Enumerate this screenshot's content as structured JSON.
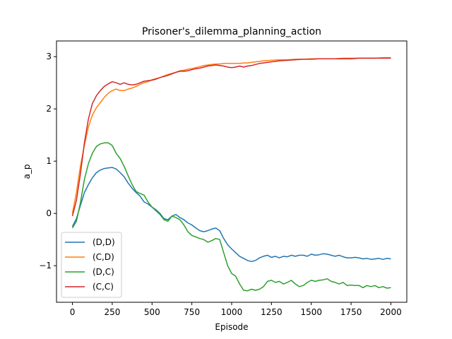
{
  "chart_data": {
    "type": "line",
    "title": "Prisoner's_dilemma_planning_action",
    "xlabel": "Episode",
    "ylabel": "a_p",
    "xlim": [
      -100,
      2100
    ],
    "ylim": [
      -1.7,
      3.3
    ],
    "xticks": [
      0,
      250,
      500,
      750,
      1000,
      1250,
      1500,
      1750,
      2000
    ],
    "yticks": [
      -1,
      0,
      1,
      2,
      3
    ],
    "xtick_labels": [
      "0",
      "250",
      "500",
      "750",
      "1000",
      "1250",
      "1500",
      "1750",
      "2000"
    ],
    "ytick_labels": [
      "−1",
      "0",
      "1",
      "2",
      "3"
    ],
    "legend_position": "lower-left",
    "grid": false,
    "series": [
      {
        "name": "(D,D)",
        "color": "#1f77b4",
        "points": [
          [
            0,
            -0.25
          ],
          [
            25,
            -0.1
          ],
          [
            50,
            0.15
          ],
          [
            75,
            0.4
          ],
          [
            100,
            0.55
          ],
          [
            125,
            0.68
          ],
          [
            150,
            0.78
          ],
          [
            175,
            0.83
          ],
          [
            200,
            0.86
          ],
          [
            225,
            0.87
          ],
          [
            250,
            0.88
          ],
          [
            275,
            0.85
          ],
          [
            300,
            0.78
          ],
          [
            325,
            0.7
          ],
          [
            350,
            0.58
          ],
          [
            375,
            0.48
          ],
          [
            400,
            0.4
          ],
          [
            425,
            0.33
          ],
          [
            450,
            0.22
          ],
          [
            475,
            0.18
          ],
          [
            500,
            0.12
          ],
          [
            525,
            0.07
          ],
          [
            550,
            0.0
          ],
          [
            575,
            -0.1
          ],
          [
            600,
            -0.12
          ],
          [
            625,
            -0.05
          ],
          [
            650,
            -0.02
          ],
          [
            675,
            -0.08
          ],
          [
            700,
            -0.12
          ],
          [
            725,
            -0.18
          ],
          [
            750,
            -0.22
          ],
          [
            775,
            -0.28
          ],
          [
            800,
            -0.33
          ],
          [
            825,
            -0.35
          ],
          [
            850,
            -0.33
          ],
          [
            875,
            -0.3
          ],
          [
            900,
            -0.28
          ],
          [
            925,
            -0.33
          ],
          [
            950,
            -0.48
          ],
          [
            975,
            -0.6
          ],
          [
            1000,
            -0.68
          ],
          [
            1025,
            -0.75
          ],
          [
            1050,
            -0.82
          ],
          [
            1075,
            -0.86
          ],
          [
            1100,
            -0.9
          ],
          [
            1125,
            -0.92
          ],
          [
            1150,
            -0.9
          ],
          [
            1175,
            -0.85
          ],
          [
            1200,
            -0.82
          ],
          [
            1225,
            -0.8
          ],
          [
            1250,
            -0.84
          ],
          [
            1275,
            -0.82
          ],
          [
            1300,
            -0.85
          ],
          [
            1325,
            -0.82
          ],
          [
            1350,
            -0.83
          ],
          [
            1375,
            -0.8
          ],
          [
            1400,
            -0.82
          ],
          [
            1425,
            -0.8
          ],
          [
            1450,
            -0.8
          ],
          [
            1475,
            -0.82
          ],
          [
            1500,
            -0.78
          ],
          [
            1525,
            -0.8
          ],
          [
            1550,
            -0.79
          ],
          [
            1575,
            -0.77
          ],
          [
            1600,
            -0.78
          ],
          [
            1625,
            -0.8
          ],
          [
            1650,
            -0.82
          ],
          [
            1675,
            -0.8
          ],
          [
            1700,
            -0.83
          ],
          [
            1725,
            -0.85
          ],
          [
            1750,
            -0.85
          ],
          [
            1775,
            -0.84
          ],
          [
            1800,
            -0.85
          ],
          [
            1825,
            -0.87
          ],
          [
            1850,
            -0.86
          ],
          [
            1875,
            -0.88
          ],
          [
            1900,
            -0.87
          ],
          [
            1925,
            -0.86
          ],
          [
            1950,
            -0.88
          ],
          [
            1975,
            -0.86
          ],
          [
            2000,
            -0.87
          ]
        ]
      },
      {
        "name": "(C,D)",
        "color": "#ff7f0e",
        "points": [
          [
            0,
            0.0
          ],
          [
            25,
            0.4
          ],
          [
            50,
            0.9
          ],
          [
            75,
            1.3
          ],
          [
            100,
            1.65
          ],
          [
            125,
            1.88
          ],
          [
            150,
            2.02
          ],
          [
            175,
            2.12
          ],
          [
            200,
            2.22
          ],
          [
            225,
            2.3
          ],
          [
            250,
            2.35
          ],
          [
            275,
            2.38
          ],
          [
            300,
            2.35
          ],
          [
            325,
            2.35
          ],
          [
            350,
            2.38
          ],
          [
            375,
            2.4
          ],
          [
            400,
            2.43
          ],
          [
            425,
            2.47
          ],
          [
            450,
            2.5
          ],
          [
            475,
            2.52
          ],
          [
            500,
            2.56
          ],
          [
            525,
            2.58
          ],
          [
            550,
            2.6
          ],
          [
            575,
            2.63
          ],
          [
            600,
            2.66
          ],
          [
            625,
            2.68
          ],
          [
            650,
            2.7
          ],
          [
            675,
            2.73
          ],
          [
            700,
            2.74
          ],
          [
            725,
            2.76
          ],
          [
            750,
            2.77
          ],
          [
            775,
            2.79
          ],
          [
            800,
            2.81
          ],
          [
            825,
            2.83
          ],
          [
            850,
            2.84
          ],
          [
            875,
            2.85
          ],
          [
            900,
            2.86
          ],
          [
            925,
            2.86
          ],
          [
            950,
            2.87
          ],
          [
            975,
            2.87
          ],
          [
            1000,
            2.87
          ],
          [
            1025,
            2.87
          ],
          [
            1050,
            2.87
          ],
          [
            1075,
            2.88
          ],
          [
            1100,
            2.88
          ],
          [
            1125,
            2.89
          ],
          [
            1150,
            2.9
          ],
          [
            1175,
            2.91
          ],
          [
            1200,
            2.92
          ],
          [
            1250,
            2.93
          ],
          [
            1300,
            2.94
          ],
          [
            1350,
            2.94
          ],
          [
            1400,
            2.95
          ],
          [
            1450,
            2.95
          ],
          [
            1500,
            2.96
          ],
          [
            1550,
            2.96
          ],
          [
            1600,
            2.96
          ],
          [
            1650,
            2.96
          ],
          [
            1700,
            2.97
          ],
          [
            1750,
            2.97
          ],
          [
            1800,
            2.97
          ],
          [
            1850,
            2.97
          ],
          [
            1900,
            2.97
          ],
          [
            1950,
            2.98
          ],
          [
            2000,
            2.98
          ]
        ]
      },
      {
        "name": "(D,C)",
        "color": "#2ca02c",
        "points": [
          [
            0,
            -0.28
          ],
          [
            25,
            -0.15
          ],
          [
            50,
            0.2
          ],
          [
            75,
            0.65
          ],
          [
            100,
            0.95
          ],
          [
            125,
            1.15
          ],
          [
            150,
            1.28
          ],
          [
            175,
            1.33
          ],
          [
            200,
            1.35
          ],
          [
            225,
            1.35
          ],
          [
            250,
            1.3
          ],
          [
            275,
            1.15
          ],
          [
            300,
            1.05
          ],
          [
            325,
            0.9
          ],
          [
            350,
            0.72
          ],
          [
            375,
            0.55
          ],
          [
            400,
            0.42
          ],
          [
            425,
            0.38
          ],
          [
            450,
            0.35
          ],
          [
            475,
            0.22
          ],
          [
            500,
            0.12
          ],
          [
            525,
            0.05
          ],
          [
            550,
            -0.02
          ],
          [
            575,
            -0.12
          ],
          [
            600,
            -0.15
          ],
          [
            625,
            -0.05
          ],
          [
            650,
            -0.08
          ],
          [
            675,
            -0.12
          ],
          [
            700,
            -0.22
          ],
          [
            725,
            -0.35
          ],
          [
            750,
            -0.42
          ],
          [
            775,
            -0.45
          ],
          [
            800,
            -0.48
          ],
          [
            825,
            -0.5
          ],
          [
            850,
            -0.55
          ],
          [
            875,
            -0.52
          ],
          [
            900,
            -0.48
          ],
          [
            925,
            -0.5
          ],
          [
            950,
            -0.75
          ],
          [
            975,
            -1.0
          ],
          [
            1000,
            -1.15
          ],
          [
            1025,
            -1.2
          ],
          [
            1050,
            -1.35
          ],
          [
            1075,
            -1.47
          ],
          [
            1100,
            -1.48
          ],
          [
            1125,
            -1.45
          ],
          [
            1150,
            -1.47
          ],
          [
            1175,
            -1.45
          ],
          [
            1200,
            -1.4
          ],
          [
            1225,
            -1.3
          ],
          [
            1250,
            -1.28
          ],
          [
            1275,
            -1.32
          ],
          [
            1300,
            -1.3
          ],
          [
            1325,
            -1.35
          ],
          [
            1350,
            -1.32
          ],
          [
            1375,
            -1.28
          ],
          [
            1400,
            -1.35
          ],
          [
            1425,
            -1.4
          ],
          [
            1450,
            -1.38
          ],
          [
            1475,
            -1.32
          ],
          [
            1500,
            -1.28
          ],
          [
            1525,
            -1.3
          ],
          [
            1550,
            -1.28
          ],
          [
            1575,
            -1.27
          ],
          [
            1600,
            -1.25
          ],
          [
            1625,
            -1.3
          ],
          [
            1650,
            -1.32
          ],
          [
            1675,
            -1.35
          ],
          [
            1700,
            -1.32
          ],
          [
            1725,
            -1.38
          ],
          [
            1750,
            -1.37
          ],
          [
            1775,
            -1.38
          ],
          [
            1800,
            -1.38
          ],
          [
            1825,
            -1.42
          ],
          [
            1850,
            -1.38
          ],
          [
            1875,
            -1.4
          ],
          [
            1900,
            -1.38
          ],
          [
            1925,
            -1.42
          ],
          [
            1950,
            -1.4
          ],
          [
            1975,
            -1.43
          ],
          [
            2000,
            -1.42
          ]
        ]
      },
      {
        "name": "(C,C)",
        "color": "#d62728",
        "points": [
          [
            0,
            -0.05
          ],
          [
            25,
            0.25
          ],
          [
            50,
            0.75
          ],
          [
            75,
            1.35
          ],
          [
            100,
            1.8
          ],
          [
            125,
            2.1
          ],
          [
            150,
            2.25
          ],
          [
            175,
            2.35
          ],
          [
            200,
            2.43
          ],
          [
            225,
            2.48
          ],
          [
            250,
            2.52
          ],
          [
            275,
            2.5
          ],
          [
            300,
            2.47
          ],
          [
            325,
            2.5
          ],
          [
            350,
            2.47
          ],
          [
            375,
            2.46
          ],
          [
            400,
            2.47
          ],
          [
            425,
            2.5
          ],
          [
            450,
            2.53
          ],
          [
            475,
            2.54
          ],
          [
            500,
            2.55
          ],
          [
            525,
            2.57
          ],
          [
            550,
            2.6
          ],
          [
            575,
            2.62
          ],
          [
            600,
            2.64
          ],
          [
            625,
            2.67
          ],
          [
            650,
            2.7
          ],
          [
            675,
            2.72
          ],
          [
            700,
            2.72
          ],
          [
            725,
            2.73
          ],
          [
            750,
            2.75
          ],
          [
            775,
            2.77
          ],
          [
            800,
            2.78
          ],
          [
            825,
            2.8
          ],
          [
            850,
            2.82
          ],
          [
            875,
            2.83
          ],
          [
            900,
            2.84
          ],
          [
            925,
            2.83
          ],
          [
            950,
            2.82
          ],
          [
            975,
            2.8
          ],
          [
            1000,
            2.79
          ],
          [
            1025,
            2.8
          ],
          [
            1050,
            2.82
          ],
          [
            1075,
            2.8
          ],
          [
            1100,
            2.82
          ],
          [
            1125,
            2.83
          ],
          [
            1150,
            2.85
          ],
          [
            1175,
            2.87
          ],
          [
            1200,
            2.88
          ],
          [
            1250,
            2.9
          ],
          [
            1300,
            2.92
          ],
          [
            1350,
            2.93
          ],
          [
            1400,
            2.94
          ],
          [
            1450,
            2.95
          ],
          [
            1500,
            2.95
          ],
          [
            1550,
            2.96
          ],
          [
            1600,
            2.96
          ],
          [
            1650,
            2.96
          ],
          [
            1700,
            2.96
          ],
          [
            1750,
            2.96
          ],
          [
            1800,
            2.97
          ],
          [
            1850,
            2.97
          ],
          [
            1900,
            2.97
          ],
          [
            1950,
            2.97
          ],
          [
            2000,
            2.97
          ]
        ]
      }
    ]
  }
}
